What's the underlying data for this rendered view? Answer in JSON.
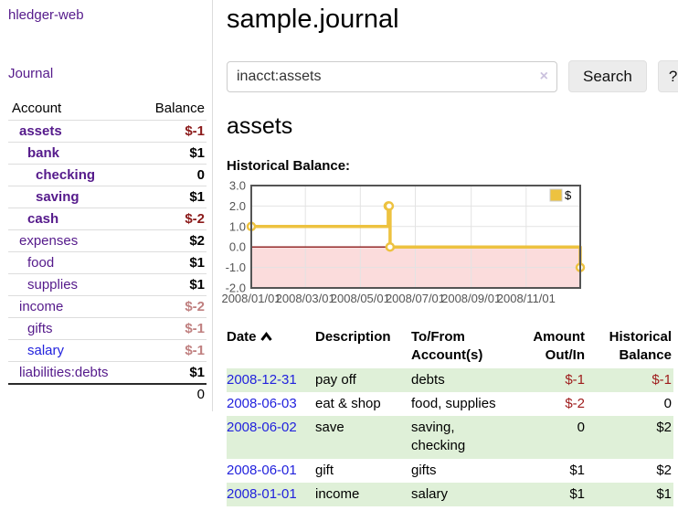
{
  "colors": {
    "link_purple": "#551A8B",
    "link_blue": "#2222DD",
    "negative_strong": "#8B1A1A",
    "negative_soft": "#C08080",
    "row_stripe_green": "#dff0d8",
    "button_bg": "#ececec"
  },
  "sidebar": {
    "app_title": "hledger-web",
    "journal_link": "Journal",
    "table": {
      "headers": [
        "Account",
        "Balance"
      ],
      "rows": [
        {
          "name": "assets",
          "depth": 1,
          "bold": true,
          "balance": "$-1",
          "neg": "strong"
        },
        {
          "name": "bank",
          "depth": 2,
          "bold": true,
          "balance": "$1"
        },
        {
          "name": "checking",
          "depth": 3,
          "bold": true,
          "balance": "0"
        },
        {
          "name": "saving",
          "depth": 3,
          "bold": true,
          "balance": "$1"
        },
        {
          "name": "cash",
          "depth": 2,
          "bold": true,
          "balance": "$-2",
          "neg": "strong"
        },
        {
          "name": "expenses",
          "depth": 1,
          "bold": false,
          "balance": "$2"
        },
        {
          "name": "food",
          "depth": 2,
          "bold": false,
          "balance": "$1"
        },
        {
          "name": "supplies",
          "depth": 2,
          "bold": false,
          "balance": "$1"
        },
        {
          "name": "income",
          "depth": 1,
          "bold": false,
          "balance": "$-2",
          "neg": "soft"
        },
        {
          "name": "gifts",
          "depth": 2,
          "bold": false,
          "balance": "$-1",
          "neg": "soft"
        },
        {
          "name": "salary",
          "depth": 2,
          "bold": false,
          "balance": "$-1",
          "neg": "soft",
          "link_style": "blue"
        },
        {
          "name": "liabilities:debts",
          "depth": 1,
          "bold": false,
          "balance": "$1"
        }
      ],
      "total": "0"
    }
  },
  "main": {
    "title": "sample.journal",
    "search": {
      "value": "inacct:assets",
      "clear_icon": "×",
      "button_label": "Search",
      "help_label": "?"
    },
    "account_heading": "assets",
    "chart_label": "Historical Balance:",
    "register": {
      "headers": [
        "Date",
        "Description",
        "To/From Account(s)",
        "Amount Out/In",
        "Historical Balance"
      ],
      "rows": [
        {
          "date": "2008-12-31",
          "description": "pay off",
          "accounts": "debts",
          "amount": "$-1",
          "balance": "$-1"
        },
        {
          "date": "2008-06-03",
          "description": "eat & shop",
          "accounts": "food, supplies",
          "amount": "$-2",
          "balance": "0"
        },
        {
          "date": "2008-06-02",
          "description": "save",
          "accounts": "saving, checking",
          "amount": "0",
          "balance": "$2"
        },
        {
          "date": "2008-06-01",
          "description": "gift",
          "accounts": "gifts",
          "amount": "$1",
          "balance": "$2"
        },
        {
          "date": "2008-01-01",
          "description": "income",
          "accounts": "salary",
          "amount": "$1",
          "balance": "$1"
        }
      ]
    }
  },
  "chart_data": {
    "type": "line",
    "title": "Historical Balance",
    "legend": "$",
    "step": true,
    "x": [
      "2008-01-01",
      "2008-06-01",
      "2008-06-02",
      "2008-06-03",
      "2008-12-31"
    ],
    "values": [
      1,
      2,
      2,
      0,
      -1
    ],
    "xlim": [
      "2008-01-01",
      "2008-12-31"
    ],
    "ylim": [
      -2,
      3
    ],
    "yticks": [
      3.0,
      2.0,
      1.0,
      0.0,
      -1.0,
      -2.0
    ],
    "xticks": [
      "2008/01/01",
      "2008/03/01",
      "2008/05/01",
      "2008/07/01",
      "2008/09/01",
      "2008/11/01"
    ],
    "grid": true,
    "legend_position": "top-right",
    "colors": {
      "line": "#EDC240",
      "marker_fill": "#ffffff",
      "negative_fill": "#FBDCDC",
      "zero_line": "#8B1A1A",
      "border": "#545454",
      "grid": "#e3e3e3",
      "tick_text": "#545454"
    }
  }
}
